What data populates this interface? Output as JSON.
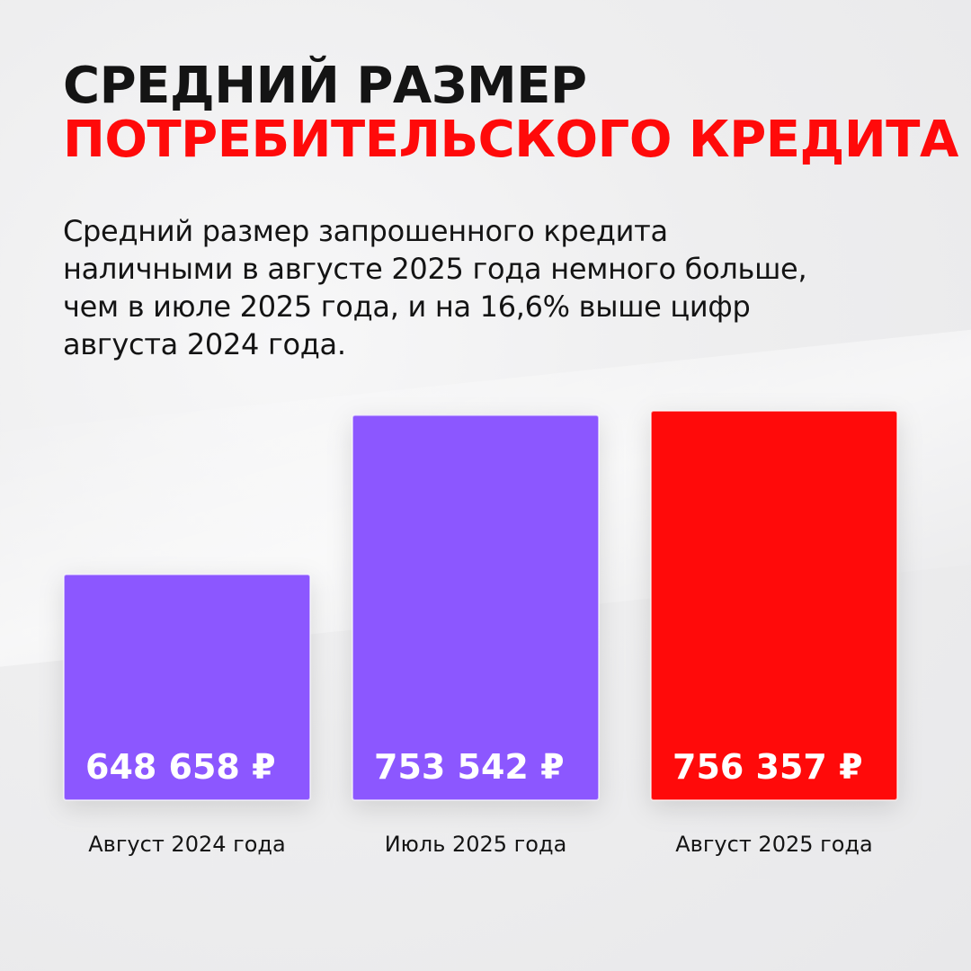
{
  "header": {
    "title_line1": "СРЕДНИЙ РАЗМЕР",
    "title_line2": "ПОТРЕБИТЕЛЬСКОГО КРЕДИТА",
    "description_lines": [
      "Средний размер запрошенного кредита",
      "наличными в августе 2025 года немного больше,",
      "чем в июле 2025 года, и на 16,6% выше цифр",
      "августа 2024 года."
    ]
  },
  "colors": {
    "accent": "#ff0a0a",
    "purple": "#8c57ff",
    "text": "#141414"
  },
  "chart_data": {
    "type": "bar",
    "categories": [
      "Август 2024 года",
      "Июль 2025 года",
      "Август 2025 года"
    ],
    "values": [
      648658,
      753542,
      756357
    ],
    "value_labels": [
      "648 658 ₽",
      "753 542 ₽",
      "756 357 ₽"
    ],
    "bar_colors": [
      "#8c57ff",
      "#8c57ff",
      "#ff0a0a"
    ],
    "grid": false,
    "legend": "none"
  }
}
